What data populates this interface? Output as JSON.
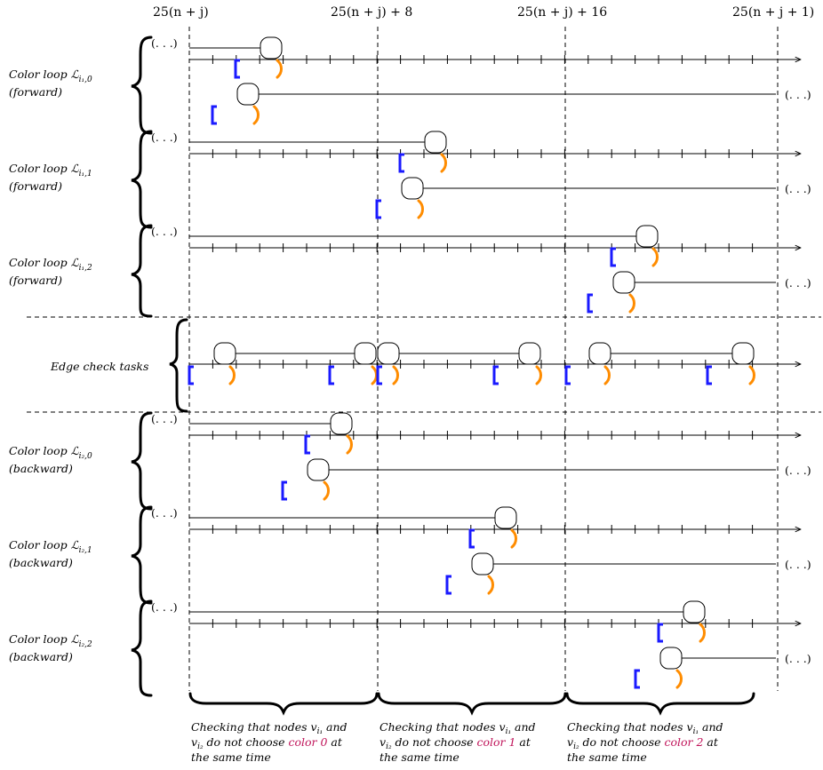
{
  "top_labels": [
    "25(n + j)",
    "25(n + j) + 8",
    "25(n + j) + 16",
    "25(n + j + 1)"
  ],
  "ellipsis": "(. . .)",
  "loops": [
    {
      "name": "Color loop ℒ",
      "sub": "i₁,0",
      "dir": "(forward)"
    },
    {
      "name": "Color loop ℒ",
      "sub": "i₁,1",
      "dir": "(forward)"
    },
    {
      "name": "Color loop ℒ",
      "sub": "i₁,2",
      "dir": "(forward)"
    },
    {
      "name": "Color loop ℒ",
      "sub": "i₂,0",
      "dir": "(backward)"
    },
    {
      "name": "Color loop ℒ",
      "sub": "i₂,1",
      "dir": "(backward)"
    },
    {
      "name": "Color loop ℒ",
      "sub": "i₂,2",
      "dir": "(backward)"
    }
  ],
  "edge_label": "Edge check tasks",
  "captions": [
    {
      "l1a": "Checking that nodes v",
      "l1sub": "i₁",
      "l1b": " and",
      "l2a": "v",
      "l2sub": "i₂",
      "l2b": " do not choose ",
      "color": "color 0",
      "l2c": " at",
      "l3": "the same time"
    },
    {
      "l1a": "Checking that nodes v",
      "l1sub": "i₁",
      "l1b": " and",
      "l2a": "v",
      "l2sub": "i₂",
      "l2b": " do not choose ",
      "color": "color 1",
      "l2c": " at",
      "l3": "the same time"
    },
    {
      "l1a": "Checking that nodes v",
      "l1sub": "i₁",
      "l1b": " and",
      "l2a": "v",
      "l2sub": "i₂",
      "l2b": " do not choose ",
      "color": "color 2",
      "l2c": " at",
      "l3": "the same time"
    }
  ],
  "colors": {
    "open_bracket": "#1a1aff",
    "close_bracket": "#ff8c00",
    "caption_color": "#c0145a"
  }
}
